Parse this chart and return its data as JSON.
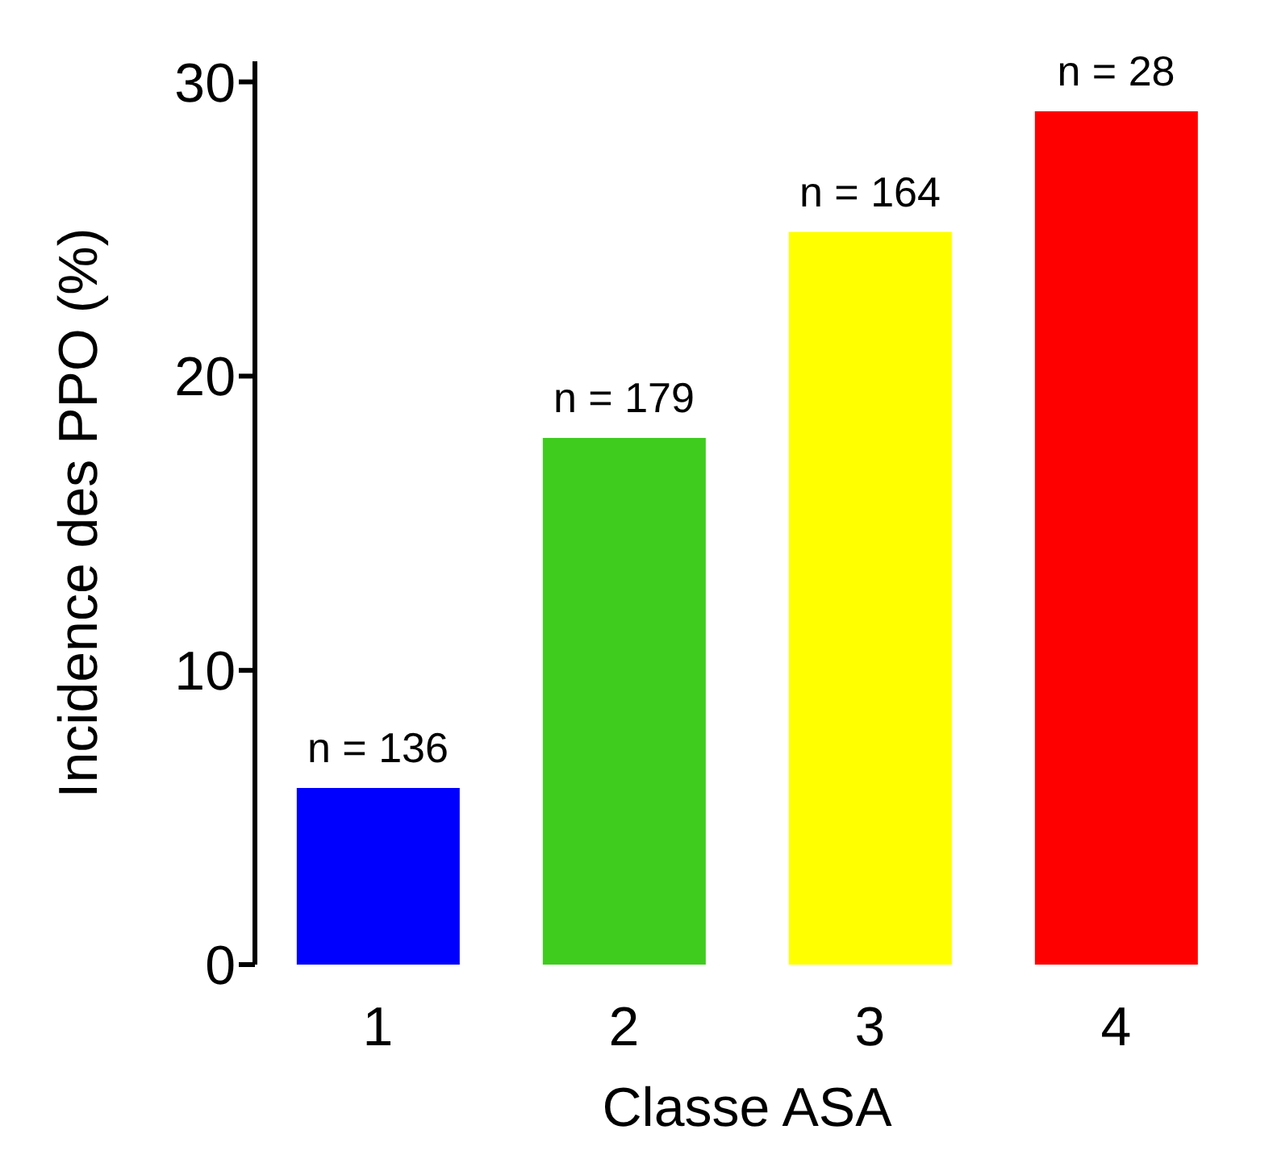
{
  "chart_data": {
    "type": "bar",
    "xlabel": "Classe ASA",
    "ylabel": "Incidence des PPO (%)",
    "categories": [
      "1",
      "2",
      "3",
      "4"
    ],
    "values": [
      6.0,
      17.9,
      24.9,
      29.0
    ],
    "colors": [
      "#0000ff",
      "#3fcc1f",
      "#ffff00",
      "#ff0000"
    ],
    "annotations": [
      {
        "text": "n = 136",
        "x": "1",
        "y": 6.0
      },
      {
        "text": "n = 179",
        "x": "2",
        "y": 17.9
      },
      {
        "text": "n = 164",
        "x": "3",
        "y": 24.9
      },
      {
        "text": "n = 28",
        "x": "4",
        "y": 29.0
      }
    ],
    "ylim": [
      0,
      30.7
    ],
    "yticks": [
      0,
      10,
      20,
      30
    ],
    "grid": false
  }
}
